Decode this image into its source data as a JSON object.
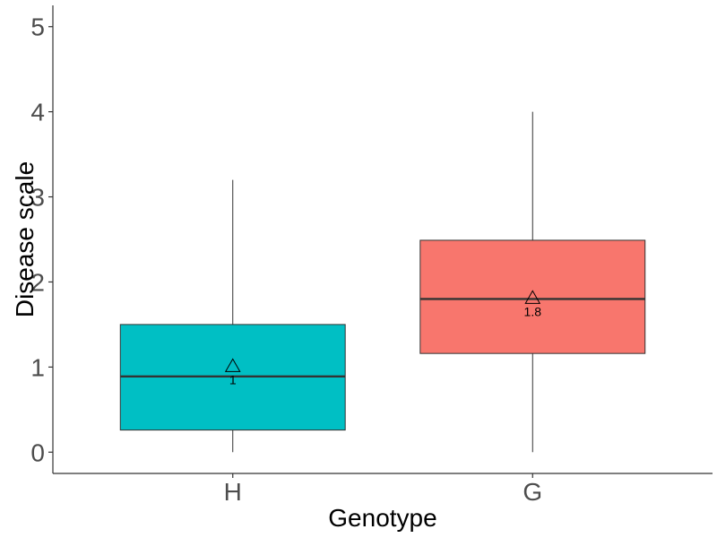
{
  "chart_data": {
    "type": "boxplot",
    "title": "",
    "xlabel": "Genotype",
    "ylabel": "Disease scale",
    "ylim": [
      -0.25,
      5.25
    ],
    "yticks": [
      0,
      1,
      2,
      3,
      4,
      5
    ],
    "grid": false,
    "legend": "none",
    "categories": [
      "H",
      "G"
    ],
    "boxes": [
      {
        "category": "H",
        "min": 0,
        "q1": 0.26,
        "median": 0.89,
        "q3": 1.5,
        "max": 3.2,
        "mean": 1.0,
        "mean_label": "1",
        "color": "#00BFC4"
      },
      {
        "category": "G",
        "min": 0,
        "q1": 1.16,
        "median": 1.8,
        "q3": 2.49,
        "max": 4.0,
        "mean": 1.8,
        "mean_label": "1.8",
        "color": "#F8766D"
      }
    ]
  }
}
